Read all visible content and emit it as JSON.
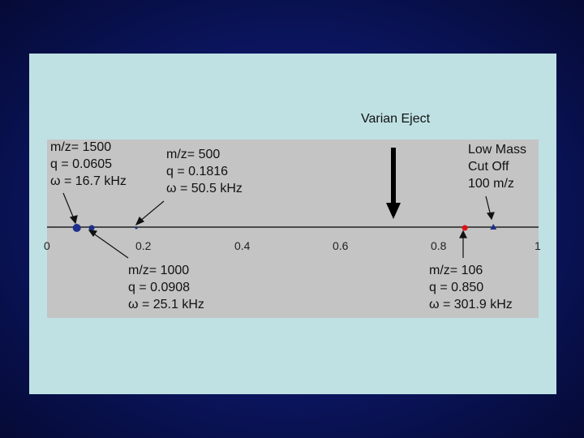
{
  "annotations": {
    "eject_label": "Varian Eject",
    "ion_1500": [
      "m/z= 1500",
      "q = 0.0605",
      "ω = 16.7 kHz"
    ],
    "ion_500": [
      "m/z= 500",
      "q = 0.1816",
      "ω = 50.5 kHz"
    ],
    "ion_1000": [
      "m/z= 1000",
      "q = 0.0908",
      "ω = 25.1 kHz"
    ],
    "ion_106": [
      "m/z= 106",
      "q = 0.850",
      "ω = 301.9 kHz"
    ],
    "cutoff": [
      "Low Mass",
      "Cut Off",
      "100 m/z"
    ]
  },
  "axis": {
    "ticks": [
      "0",
      "0.2",
      "0.4",
      "0.6",
      "0.8",
      "1"
    ],
    "range": [
      0,
      1
    ]
  },
  "points": [
    {
      "q": 0.0605,
      "color": "#1c2f8c",
      "shape": "circle",
      "size": "large"
    },
    {
      "q": 0.0908,
      "color": "#1c2f8c",
      "shape": "circle",
      "size": "medium"
    },
    {
      "q": 0.1816,
      "color": "#1c2f8c",
      "shape": "circle",
      "size": "tiny"
    },
    {
      "q": 0.85,
      "color": "#e01010",
      "shape": "circle",
      "size": "medium"
    },
    {
      "q": 0.908,
      "color": "#1c2f8c",
      "shape": "triangle",
      "size": "medium"
    }
  ],
  "eject_q": 0.706,
  "colors": {
    "background": "#0b155e",
    "panel": "#bfe1e3",
    "plot": "#c4c4c4",
    "accent_red": "#e01010"
  }
}
